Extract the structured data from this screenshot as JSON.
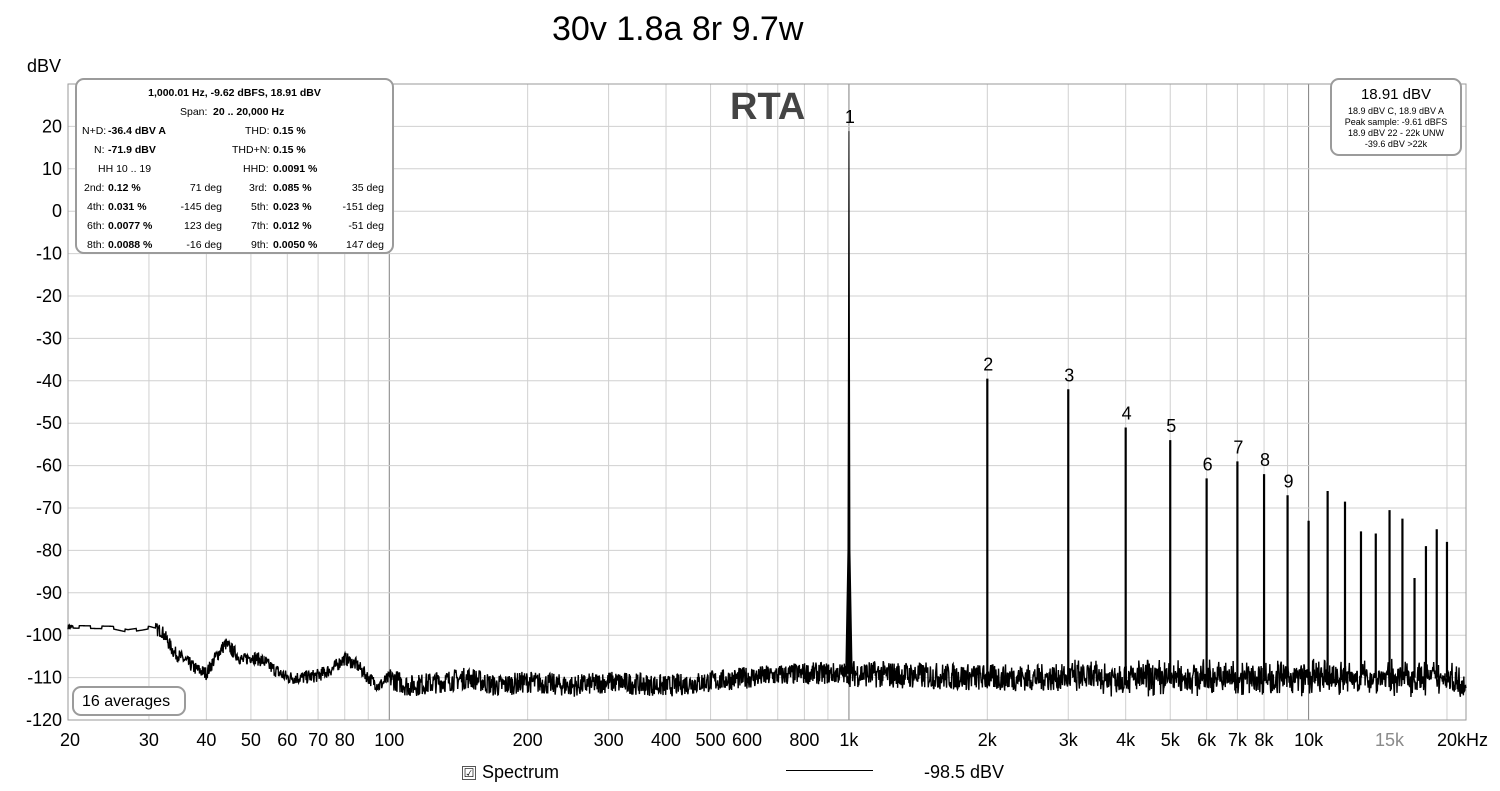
{
  "chart_data": {
    "type": "line",
    "title": "30v 1.8a 8r 9.7w",
    "subtitle": "RTA",
    "ylabel": "dBV",
    "xlabel": "",
    "x_scale": "log",
    "xlim": [
      20,
      22000
    ],
    "ylim": [
      -120,
      30
    ],
    "grid": true,
    "yticks": [
      20,
      10,
      0,
      -10,
      -20,
      -30,
      -40,
      -50,
      -60,
      -70,
      -80,
      -90,
      -100,
      -110,
      -120
    ],
    "ytick_labels": [
      "20",
      "10",
      "0",
      "-10",
      "-20",
      "-30",
      "-40",
      "-50",
      "-60",
      "-70",
      "-80",
      "-90",
      "-100",
      "-110",
      "-120"
    ],
    "xticks": [
      {
        "v": 20,
        "label": "20"
      },
      {
        "v": 30,
        "label": "30"
      },
      {
        "v": 40,
        "label": "40"
      },
      {
        "v": 50,
        "label": "50"
      },
      {
        "v": 60,
        "label": "60"
      },
      {
        "v": 70,
        "label": "70"
      },
      {
        "v": 80,
        "label": "80"
      },
      {
        "v": 100,
        "label": "100"
      },
      {
        "v": 200,
        "label": "200"
      },
      {
        "v": 300,
        "label": "300"
      },
      {
        "v": 400,
        "label": "400"
      },
      {
        "v": 500,
        "label": "500"
      },
      {
        "v": 600,
        "label": "600"
      },
      {
        "v": 800,
        "label": "800"
      },
      {
        "v": 1000,
        "label": "1k"
      },
      {
        "v": 2000,
        "label": "2k"
      },
      {
        "v": 3000,
        "label": "3k"
      },
      {
        "v": 4000,
        "label": "4k"
      },
      {
        "v": 5000,
        "label": "5k"
      },
      {
        "v": 6000,
        "label": "6k"
      },
      {
        "v": 7000,
        "label": "7k"
      },
      {
        "v": 8000,
        "label": "8k"
      },
      {
        "v": 10000,
        "label": "10k"
      },
      {
        "v": 15000,
        "label": "15k"
      },
      {
        "v": 20000,
        "label": "20kHz"
      }
    ],
    "series": [
      {
        "name": "Spectrum",
        "legend_value": "-98.5 dBV",
        "color": "#000000",
        "noise_floor": [
          [
            20,
            -98
          ],
          [
            25,
            -98.2
          ],
          [
            27,
            -99
          ],
          [
            29,
            -98.5
          ],
          [
            30,
            -98.2
          ],
          [
            32,
            -99
          ],
          [
            34,
            -104
          ],
          [
            36,
            -106
          ],
          [
            38,
            -108
          ],
          [
            40,
            -109
          ],
          [
            42,
            -105
          ],
          [
            44,
            -102
          ],
          [
            46,
            -104
          ],
          [
            48,
            -106
          ],
          [
            50,
            -105
          ],
          [
            53,
            -106
          ],
          [
            56,
            -108
          ],
          [
            60,
            -110
          ],
          [
            65,
            -110
          ],
          [
            70,
            -109.5
          ],
          [
            75,
            -108
          ],
          [
            80,
            -105.5
          ],
          [
            85,
            -107
          ],
          [
            90,
            -110
          ],
          [
            95,
            -112
          ],
          [
            100,
            -110
          ],
          [
            110,
            -112
          ],
          [
            130,
            -111
          ],
          [
            150,
            -110
          ],
          [
            170,
            -112
          ],
          [
            200,
            -111
          ],
          [
            250,
            -112
          ],
          [
            300,
            -111
          ],
          [
            400,
            -112
          ],
          [
            600,
            -110
          ],
          [
            800,
            -109
          ],
          [
            1000,
            -109
          ],
          [
            2000,
            -110
          ],
          [
            5000,
            -110
          ],
          [
            10000,
            -110
          ],
          [
            20000,
            -110
          ],
          [
            22000,
            -111
          ]
        ],
        "peaks": [
          {
            "x": 1000,
            "y": 18.9,
            "label": "1"
          },
          {
            "x": 2000,
            "y": -39.5,
            "label": "2"
          },
          {
            "x": 3000,
            "y": -42,
            "label": "3"
          },
          {
            "x": 4000,
            "y": -51,
            "label": "4"
          },
          {
            "x": 5000,
            "y": -54,
            "label": "5"
          },
          {
            "x": 6000,
            "y": -63,
            "label": "6"
          },
          {
            "x": 7000,
            "y": -59,
            "label": "7"
          },
          {
            "x": 8000,
            "y": -62,
            "label": "8"
          },
          {
            "x": 9000,
            "y": -67,
            "label": "9"
          },
          {
            "x": 10000,
            "y": -73,
            "label": ""
          },
          {
            "x": 11000,
            "y": -66,
            "label": ""
          },
          {
            "x": 12000,
            "y": -68.5,
            "label": ""
          },
          {
            "x": 13000,
            "y": -75.5,
            "label": ""
          },
          {
            "x": 14000,
            "y": -76,
            "label": ""
          },
          {
            "x": 15000,
            "y": -70.5,
            "label": ""
          },
          {
            "x": 16000,
            "y": -72.5,
            "label": ""
          },
          {
            "x": 17000,
            "y": -86.5,
            "label": ""
          },
          {
            "x": 18000,
            "y": -79,
            "label": ""
          },
          {
            "x": 19000,
            "y": -75,
            "label": ""
          },
          {
            "x": 20000,
            "y": -78,
            "label": ""
          }
        ]
      }
    ]
  },
  "stats": {
    "header1": "1,000.01 Hz, -9.62 dBFS, 18.91 dBV",
    "span_label": "Span:",
    "span_value": "20 .. 20,000 Hz",
    "nd_label": "N+D:",
    "nd_value": "-36.4 dBV A",
    "thd_label": "THD:",
    "thd_value": "0.15 %",
    "n_label": "N:",
    "n_value": "-71.9 dBV",
    "thdn_label": "THD+N:",
    "thdn_value": "0.15 %",
    "hh_label": "HH 10 .. 19",
    "hhd_label": "HHD:",
    "hhd_value": "0.0091 %",
    "harmonics": [
      {
        "label": "2nd:",
        "pct": "0.12 %",
        "deg": "71 deg"
      },
      {
        "label": "3rd:",
        "pct": "0.085 %",
        "deg": "35 deg"
      },
      {
        "label": "4th:",
        "pct": "0.031 %",
        "deg": "-145 deg"
      },
      {
        "label": "5th:",
        "pct": "0.023 %",
        "deg": "-151 deg"
      },
      {
        "label": "6th:",
        "pct": "0.0077 %",
        "deg": "123 deg"
      },
      {
        "label": "7th:",
        "pct": "0.012 %",
        "deg": "-51 deg"
      },
      {
        "label": "8th:",
        "pct": "0.0088 %",
        "deg": "-16 deg"
      },
      {
        "label": "9th:",
        "pct": "0.0050 %",
        "deg": "147 deg"
      }
    ]
  },
  "level_box": {
    "main": "18.91 dBV",
    "line1": "18.9 dBV C, 18.9 dBV A",
    "line2": "Peak sample: -9.61 dBFS",
    "line3": "18.9 dBV 22 - 22k UNW",
    "line4": "-39.6 dBV >22k"
  },
  "averages_label": "16 averages",
  "legend": {
    "label": "Spectrum",
    "value": "-98.5 dBV",
    "checked": "☑"
  }
}
